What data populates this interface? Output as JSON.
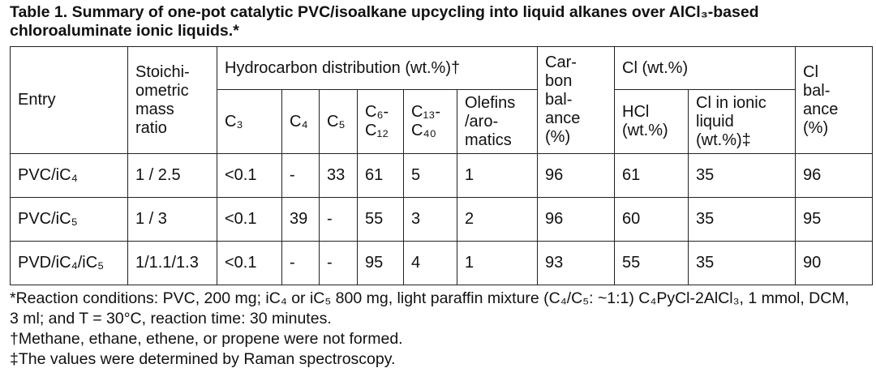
{
  "title": "Table 1. Summary of one-pot catalytic PVC/isoalkane upcycling into liquid alkanes over AlCl₃-based chloroaluminate ionic liquids.*",
  "table": {
    "header": {
      "entry": "Entry",
      "ratio": "Stoichi-\nometric\nmass\nratio",
      "hydrocarbon": "Hydrocarbon distribution (wt.%)†",
      "carbon": "Car-\nbon\nbal-\nance\n(%)",
      "cl": "Cl (wt.%)",
      "cl_balance": "Cl\nbal-\nance\n(%)",
      "sub": [
        "C₃",
        "C₄",
        "C₅",
        "C₆-\nC₁₂",
        "C₁₃-\nC₄₀",
        "Olefins\n/aro-\nmatics",
        "HCl\n(wt.%)",
        "Cl in ionic\nliquid\n(wt.%)‡"
      ]
    },
    "rows": [
      [
        "PVC/iC₄",
        "1 / 2.5",
        "<0.1",
        "-",
        33,
        61,
        5,
        1,
        96,
        61,
        35,
        96
      ],
      [
        "PVC/iC₅",
        "1 / 3",
        "<0.1",
        39,
        "-",
        55,
        3,
        2,
        96,
        60,
        35,
        95
      ],
      [
        "PVD/iC₄/iC₅",
        "1/1.1/1.3",
        "<0.1",
        "-",
        "-",
        95,
        4,
        1,
        93,
        55,
        35,
        90
      ]
    ]
  },
  "footnotes": [
    "*Reaction conditions: PVC, 200 mg; iC₄ or iC₅ 800 mg, light paraffin mixture (C₄/C₅: ~1:1) C₄PyCl-2AlCl₃, 1 mmol, DCM, 3 ml; and T = 30°C, reaction time: 30 minutes.",
    "†Methane, ethane, ethene, or propene were not formed.",
    "‡The values were determined by Raman spectroscopy."
  ]
}
